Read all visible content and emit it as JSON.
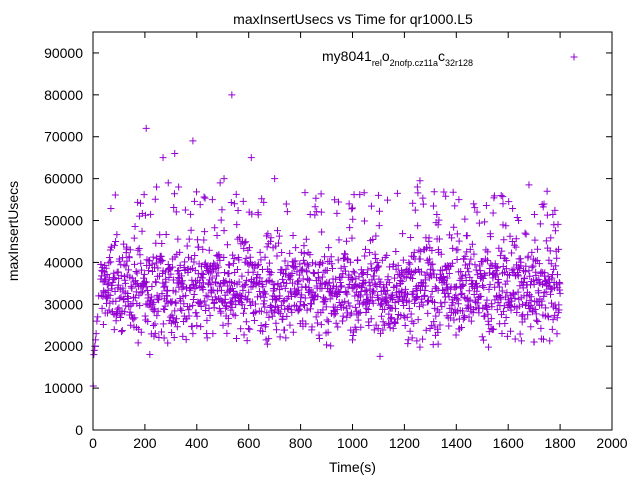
{
  "chart_data": {
    "type": "scatter",
    "title": "maxInsertUsecs vs Time for qr1000.L5",
    "xlabel": "Time(s)",
    "ylabel": "maxInsertUsecs",
    "xlim": [
      0,
      2000
    ],
    "ylim": [
      0,
      95000
    ],
    "xticks": [
      0,
      200,
      400,
      600,
      800,
      1000,
      1200,
      1400,
      1600,
      1800,
      2000
    ],
    "yticks": [
      0,
      10000,
      20000,
      30000,
      40000,
      50000,
      60000,
      70000,
      80000,
      90000
    ],
    "xtick_labels": [
      "0",
      "200",
      "400",
      "600",
      "800",
      "1000",
      "1200",
      "1400",
      "1600",
      "1800",
      "2000"
    ],
    "ytick_labels": [
      "0",
      "10000",
      "20000",
      "30000",
      "40000",
      "50000",
      "60000",
      "70000",
      "80000",
      "90000"
    ],
    "legend_position": "top-right",
    "marker": "+",
    "color": "#9400d3",
    "series": [
      {
        "name": "my8041_rel_o2nofp.cz11a_c32r128",
        "legend_parts": [
          {
            "text": "my8041",
            "sub": false
          },
          {
            "text": "rel",
            "sub": true
          },
          {
            "text": "o",
            "sub": false
          },
          {
            "text": "2nofp.cz11a",
            "sub": true
          },
          {
            "text": "c",
            "sub": false
          },
          {
            "text": "32r128",
            "sub": true
          }
        ],
        "x_range": [
          0,
          1800
        ],
        "sampling_interval_s": 1,
        "typical_band": [
          25000,
          45000
        ],
        "typical_center": 34000,
        "points": [
          [
            1,
            10500
          ],
          [
            3,
            18000
          ],
          [
            5,
            19000
          ],
          [
            7,
            20000
          ],
          [
            10,
            21500
          ],
          [
            12,
            23000
          ],
          [
            15,
            26000
          ],
          [
            18,
            27000
          ],
          [
            22,
            32000
          ],
          [
            30,
            36000
          ],
          [
            205,
            72000
          ],
          [
            245,
            58000
          ],
          [
            270,
            65000
          ],
          [
            290,
            59000
          ],
          [
            315,
            66000
          ],
          [
            330,
            58000
          ],
          [
            385,
            69000
          ],
          [
            460,
            55000
          ],
          [
            490,
            59000
          ],
          [
            505,
            60000
          ],
          [
            535,
            80000
          ],
          [
            545,
            54000
          ],
          [
            610,
            65000
          ],
          [
            700,
            60000
          ],
          [
            880,
            52000
          ],
          [
            1000,
            53000
          ],
          [
            1100,
            56000
          ],
          [
            1250,
            58000
          ],
          [
            1260,
            59500
          ],
          [
            1330,
            49000
          ],
          [
            1410,
            55000
          ],
          [
            1480,
            52000
          ],
          [
            1580,
            54000
          ],
          [
            1640,
            50000
          ],
          [
            1680,
            58500
          ],
          [
            1750,
            57000
          ],
          [
            440,
            22000
          ],
          [
            1230,
            22000
          ],
          [
            1330,
            20500
          ],
          [
            1700,
            21000
          ],
          [
            1000,
            21500
          ],
          [
            240,
            23000
          ]
        ]
      }
    ]
  }
}
